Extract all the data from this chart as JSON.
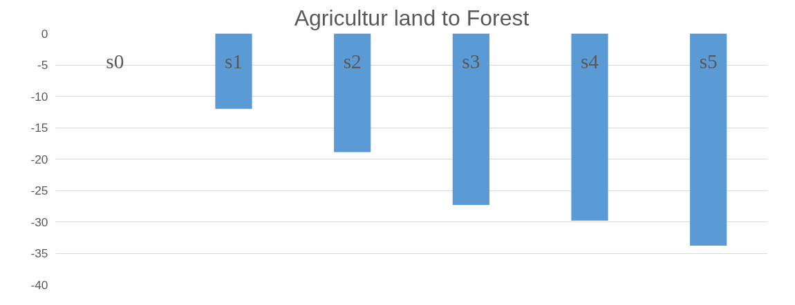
{
  "chart_data": {
    "type": "bar",
    "title": "Agricultur land to Forest",
    "categories": [
      "s0",
      "s1",
      "s2",
      "s3",
      "s4",
      "s5"
    ],
    "values": [
      0,
      -12,
      -18.9,
      -27.3,
      -29.8,
      -33.8
    ],
    "color": "#5b9bd5",
    "ylim": [
      -40,
      0
    ],
    "yticks": [
      0,
      -5,
      -10,
      -15,
      -20,
      -25,
      -30,
      -35,
      -40
    ],
    "grid": "y"
  }
}
